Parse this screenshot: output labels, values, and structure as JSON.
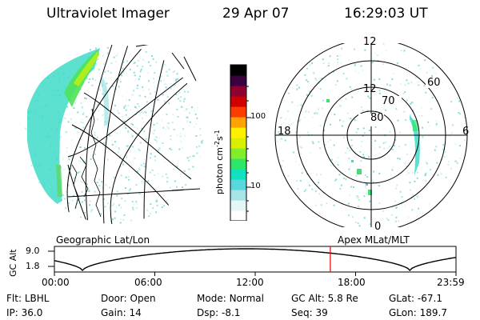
{
  "header": {
    "title": "Ultraviolet Imager",
    "date": "29 Apr 07",
    "time": "16:29:03 UT"
  },
  "colorbar": {
    "label": "photon cm",
    "label_exp1": "-2",
    "label_mid": "s",
    "label_exp2": "-1",
    "ticks": [
      {
        "label": "100",
        "value": 100
      },
      {
        "label": "10",
        "value": 10
      }
    ],
    "colors": [
      "#ffffff",
      "#e4f6f6",
      "#a6e4e6",
      "#58d8dc",
      "#10e2c0",
      "#2ce76a",
      "#82ee2a",
      "#d8f000",
      "#fff000",
      "#ffa300",
      "#ff3c00",
      "#d10000",
      "#8e0030",
      "#3a0040",
      "#000000"
    ]
  },
  "polar": {
    "labels": {
      "top": "12",
      "left": "18",
      "right": "6",
      "bottom": "0"
    },
    "rings": [
      "80",
      "70",
      "60"
    ]
  },
  "timeline": {
    "ylabel": "GC Alt",
    "yticks": [
      "9.0",
      "1.8"
    ],
    "left_caption": "Geographic Lat/Lon",
    "right_caption": "Apex MLat/MLT",
    "xticks": [
      "00:00",
      "06:00",
      "12:00",
      "18:00",
      "23:59"
    ],
    "current_time_fraction": 0.687
  },
  "footer": {
    "rows": [
      [
        {
          "label": "Flt:",
          "value": "LBHL"
        },
        {
          "label": "Door:",
          "value": "Open"
        },
        {
          "label": "Mode:",
          "value": "Normal"
        },
        {
          "label": "GC Alt:",
          "value": "5.8 Re"
        },
        {
          "label": "GLat:",
          "value": "-67.1"
        }
      ],
      [
        {
          "label": "IP:",
          "value": "36.0"
        },
        {
          "label": "Gain:",
          "value": "14"
        },
        {
          "label": "Dsp:",
          "value": "-8.1"
        },
        {
          "label": "Seq:",
          "value": "39"
        },
        {
          "label": "GLon:",
          "value": "189.7"
        }
      ]
    ]
  }
}
